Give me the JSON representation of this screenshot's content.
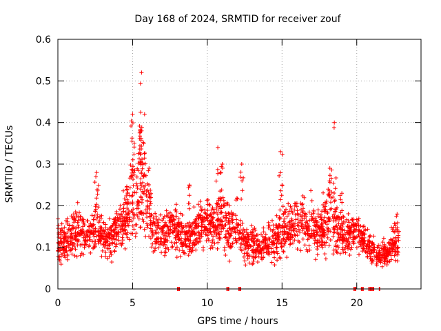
{
  "chart_data": {
    "type": "scatter",
    "title": "Day 168 of 2024, SRMTID for receiver zouf",
    "xlabel": "GPS time / hours",
    "ylabel": "SRMTID / TECUs",
    "xlim": [
      0,
      24.3
    ],
    "ylim": [
      0,
      0.6
    ],
    "xticks": [
      0,
      5,
      10,
      15,
      20
    ],
    "yticks": [
      0,
      0.1,
      0.2,
      0.3,
      0.4,
      0.5,
      0.6
    ],
    "xtick_labels": [
      "0",
      "5",
      "10",
      "15",
      "20"
    ],
    "ytick_labels": [
      "0",
      "0.1",
      "0.2",
      "0.3",
      "0.4",
      "0.5",
      "0.6"
    ],
    "grid": true,
    "marker": "+",
    "color": "#ff0000",
    "series_name": "SRMTID",
    "profile": [
      [
        0.0,
        0.12,
        0.04
      ],
      [
        0.5,
        0.11,
        0.03
      ],
      [
        1.0,
        0.13,
        0.035
      ],
      [
        1.5,
        0.14,
        0.035
      ],
      [
        2.0,
        0.13,
        0.03
      ],
      [
        2.5,
        0.14,
        0.04
      ],
      [
        3.0,
        0.12,
        0.035
      ],
      [
        3.5,
        0.12,
        0.03
      ],
      [
        4.0,
        0.14,
        0.035
      ],
      [
        4.5,
        0.17,
        0.05
      ],
      [
        5.0,
        0.22,
        0.07
      ],
      [
        5.5,
        0.26,
        0.08
      ],
      [
        6.0,
        0.2,
        0.06
      ],
      [
        6.5,
        0.14,
        0.04
      ],
      [
        7.0,
        0.13,
        0.035
      ],
      [
        7.5,
        0.15,
        0.04
      ],
      [
        8.0,
        0.14,
        0.035
      ],
      [
        8.5,
        0.12,
        0.035
      ],
      [
        9.0,
        0.13,
        0.035
      ],
      [
        9.5,
        0.15,
        0.04
      ],
      [
        10.0,
        0.16,
        0.04
      ],
      [
        10.5,
        0.15,
        0.04
      ],
      [
        11.0,
        0.17,
        0.05
      ],
      [
        11.5,
        0.13,
        0.035
      ],
      [
        12.0,
        0.15,
        0.04
      ],
      [
        12.5,
        0.11,
        0.03
      ],
      [
        13.0,
        0.11,
        0.03
      ],
      [
        13.5,
        0.1,
        0.03
      ],
      [
        14.0,
        0.11,
        0.03
      ],
      [
        14.5,
        0.12,
        0.035
      ],
      [
        15.0,
        0.14,
        0.04
      ],
      [
        15.5,
        0.15,
        0.04
      ],
      [
        16.0,
        0.16,
        0.045
      ],
      [
        16.5,
        0.16,
        0.04
      ],
      [
        17.0,
        0.15,
        0.04
      ],
      [
        17.5,
        0.13,
        0.04
      ],
      [
        18.0,
        0.17,
        0.06
      ],
      [
        18.5,
        0.16,
        0.05
      ],
      [
        19.0,
        0.13,
        0.035
      ],
      [
        19.5,
        0.13,
        0.03
      ],
      [
        20.0,
        0.14,
        0.03
      ],
      [
        20.5,
        0.12,
        0.03
      ],
      [
        21.0,
        0.09,
        0.025
      ],
      [
        21.5,
        0.08,
        0.02
      ],
      [
        22.0,
        0.09,
        0.025
      ],
      [
        22.5,
        0.11,
        0.03
      ]
    ],
    "spikes": [
      {
        "x": 2.6,
        "y": 0.28,
        "count": 10
      },
      {
        "x": 5.0,
        "y": 0.42,
        "count": 14
      },
      {
        "x": 5.5,
        "y": 0.38,
        "count": 14
      },
      {
        "x": 5.6,
        "y": 0.52,
        "count": 6
      },
      {
        "x": 5.8,
        "y": 0.42,
        "count": 8
      },
      {
        "x": 6.1,
        "y": 0.29,
        "count": 8
      },
      {
        "x": 8.8,
        "y": 0.25,
        "count": 6
      },
      {
        "x": 10.7,
        "y": 0.34,
        "count": 6
      },
      {
        "x": 11.0,
        "y": 0.3,
        "count": 6
      },
      {
        "x": 12.3,
        "y": 0.3,
        "count": 6
      },
      {
        "x": 14.9,
        "y": 0.33,
        "count": 6
      },
      {
        "x": 15.0,
        "y": 0.25,
        "count": 4
      },
      {
        "x": 18.2,
        "y": 0.29,
        "count": 10
      },
      {
        "x": 18.5,
        "y": 0.4,
        "count": 6
      },
      {
        "x": 19.0,
        "y": 0.23,
        "count": 6
      },
      {
        "x": 22.7,
        "y": 0.18,
        "count": 6
      }
    ],
    "zero_points_x": [
      8.0,
      8.1,
      11.3,
      11.4,
      12.1,
      12.2,
      19.8,
      19.9,
      20.3,
      20.4,
      20.8,
      20.9,
      21.0,
      21.1,
      21.5
    ]
  }
}
